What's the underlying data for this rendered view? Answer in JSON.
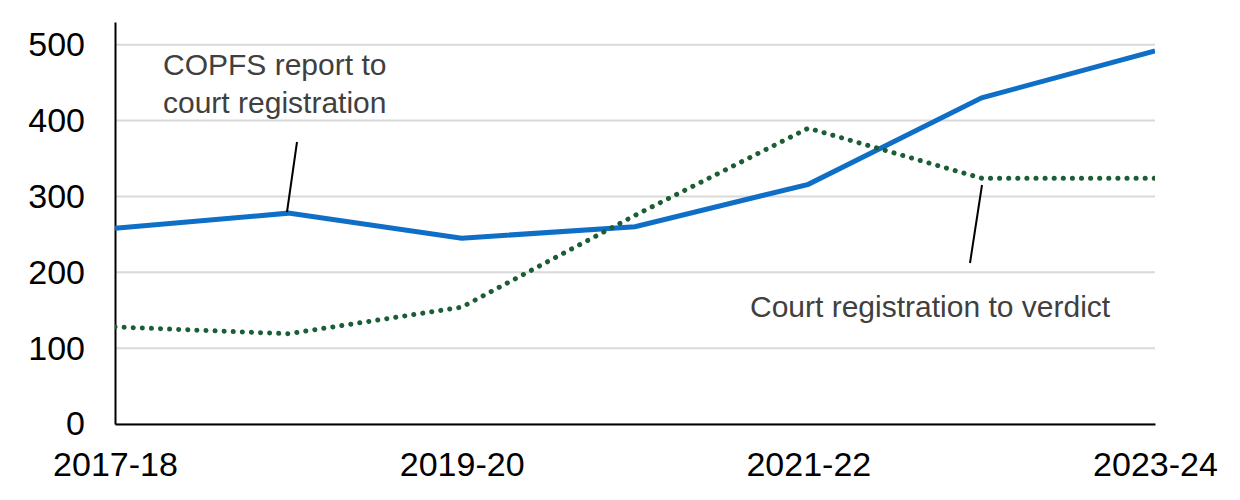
{
  "chart_data": {
    "type": "line",
    "categories": [
      "2017-18",
      null,
      "2019-20",
      null,
      "2021-22",
      null,
      "2023-24"
    ],
    "series": [
      {
        "name": "COPFS report to court registration",
        "color": "#0f6fc6",
        "line_style": "solid",
        "values": [
          258,
          278,
          245,
          260,
          316,
          430,
          492
        ]
      },
      {
        "name": "Court registration to verdict",
        "color": "#1b5e35",
        "line_style": "dotted",
        "values": [
          128,
          119,
          154,
          275,
          390,
          324,
          324
        ]
      }
    ],
    "ylim": [
      0,
      530
    ],
    "yticks": [
      0,
      100,
      200,
      300,
      400,
      500
    ],
    "grid": true
  }
}
